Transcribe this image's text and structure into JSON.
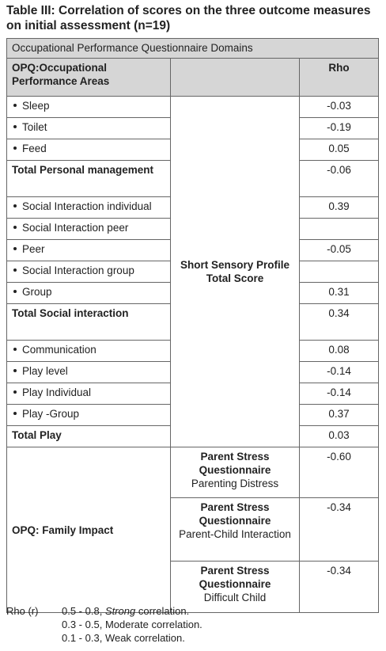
{
  "title": "Table III: Correlation of scores on the three outcome measures on initial assessment (n=19)",
  "table": {
    "caption": "Occupational Performance Questionnaire Domains",
    "header": {
      "area": "OPQ:Occupational Performance Areas",
      "rho": "Rho"
    },
    "sensory": {
      "measure": "Short Sensory Profile Total Score",
      "rows": [
        {
          "area": "Sleep",
          "rho": "-0.03",
          "style": "bullet"
        },
        {
          "area": "Toilet",
          "rho": "-0.19",
          "style": "bullet"
        },
        {
          "area": "Feed",
          "rho": "0.05",
          "style": "bullet"
        },
        {
          "area": "Total Personal management",
          "rho": "-0.06",
          "style": "total"
        },
        {
          "area": "Social Interaction individual",
          "rho": "0.39",
          "style": "bullet"
        },
        {
          "area": "Social Interaction peer",
          "rho": null,
          "style": "bullet"
        },
        {
          "area": "Peer",
          "rho": "-0.05",
          "style": "bullet"
        },
        {
          "area": "Social Interaction group",
          "rho": null,
          "style": "bullet"
        },
        {
          "area": "Group",
          "rho": "0.31",
          "style": "bullet"
        },
        {
          "area": "Total Social interaction",
          "rho": "0.34",
          "style": "total"
        },
        {
          "area": "Communication",
          "rho": "0.08",
          "style": "bullet"
        },
        {
          "area": "Play level",
          "rho": "-0.14",
          "style": "bullet"
        },
        {
          "area": "Play Individual",
          "rho": "-0.14",
          "style": "bullet"
        },
        {
          "area": "Play -Group",
          "rho": "0.37",
          "style": "bullet"
        },
        {
          "area": "Total Play",
          "rho": "0.03",
          "style": "total"
        }
      ]
    },
    "family": {
      "area": "OPQ: Family Impact",
      "rows": [
        {
          "measure": "Parent Stress Questionnaire",
          "subscale": "Parenting Distress",
          "rho": "-0.60"
        },
        {
          "measure": "Parent Stress Questionnaire",
          "subscale": "Parent-Child Interaction",
          "rho": "-0.34"
        },
        {
          "measure": "Parent Stress Questionnaire",
          "subscale": "Difficult Child",
          "rho": "-0.34"
        }
      ]
    }
  },
  "footnote": {
    "label": "Rho (r)",
    "items": [
      {
        "range": "0.5 - 0.8,",
        "strength": "Strong",
        "suffix": "correlation.",
        "italic": true
      },
      {
        "range": "0.3 - 0.5,",
        "strength": "Moderate",
        "suffix": "correlation.",
        "italic": false
      },
      {
        "range": "0.1 - 0.3,",
        "strength": "Weak",
        "suffix": "correlation.",
        "italic": false
      }
    ]
  }
}
